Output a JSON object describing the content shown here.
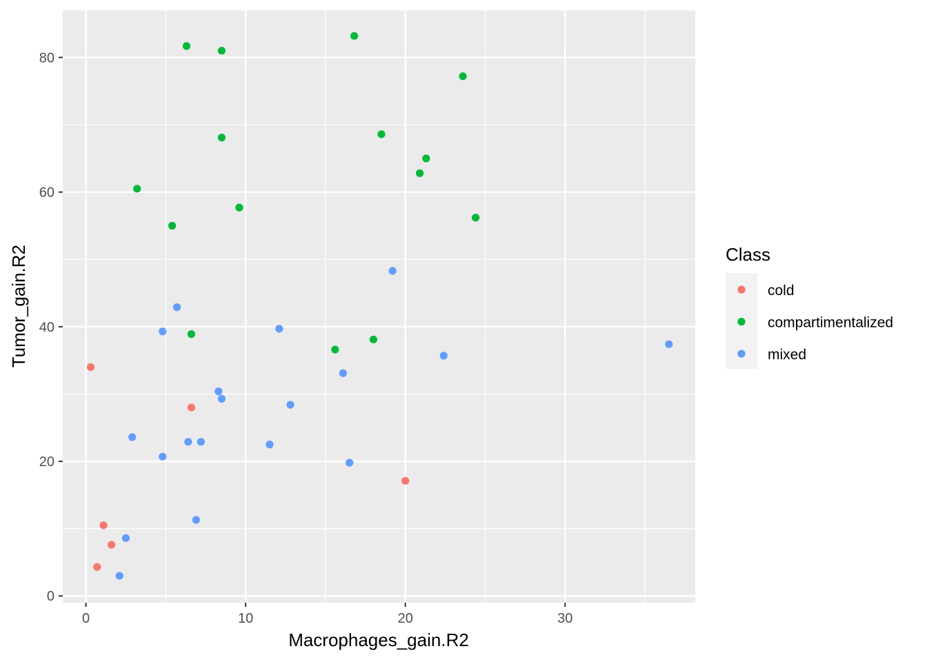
{
  "chart_data": {
    "type": "scatter",
    "xlabel": "Macrophages_gain.R2",
    "ylabel": "Tumor_gain.R2",
    "xlim": [
      -1.45,
      38.15
    ],
    "ylim": [
      -1.0,
      87.0
    ],
    "x_ticks": [
      0,
      10,
      20,
      30
    ],
    "y_ticks": [
      0,
      20,
      40,
      60,
      80
    ],
    "x_minor": [
      5,
      15,
      25,
      35
    ],
    "y_minor": [
      10,
      30,
      50,
      70
    ],
    "grid": true,
    "legend": {
      "title": "Class",
      "position": "right",
      "entries": [
        {
          "label": "cold",
          "color": "#F8766D"
        },
        {
          "label": "compartimentalized",
          "color": "#00BA38"
        },
        {
          "label": "mixed",
          "color": "#619CFF"
        }
      ]
    },
    "series": [
      {
        "name": "cold",
        "color": "#F8766D",
        "points": [
          [
            0.3,
            34.0
          ],
          [
            0.7,
            4.3
          ],
          [
            1.1,
            10.5
          ],
          [
            1.6,
            7.6
          ],
          [
            6.6,
            28.0
          ],
          [
            20.0,
            17.1
          ]
        ]
      },
      {
        "name": "compartimentalized",
        "color": "#00BA38",
        "points": [
          [
            3.2,
            60.5
          ],
          [
            5.4,
            55.0
          ],
          [
            6.3,
            81.7
          ],
          [
            6.6,
            38.9
          ],
          [
            8.5,
            81.0
          ],
          [
            8.5,
            68.1
          ],
          [
            9.6,
            57.7
          ],
          [
            15.6,
            36.6
          ],
          [
            16.8,
            83.2
          ],
          [
            18.0,
            38.1
          ],
          [
            18.5,
            68.6
          ],
          [
            20.9,
            62.8
          ],
          [
            21.3,
            65.0
          ],
          [
            23.6,
            77.2
          ],
          [
            24.4,
            56.2
          ]
        ]
      },
      {
        "name": "mixed",
        "color": "#619CFF",
        "points": [
          [
            2.1,
            3.0
          ],
          [
            2.5,
            8.6
          ],
          [
            2.9,
            23.6
          ],
          [
            4.8,
            39.3
          ],
          [
            4.8,
            20.7
          ],
          [
            5.7,
            42.9
          ],
          [
            6.4,
            22.9
          ],
          [
            6.9,
            11.3
          ],
          [
            7.2,
            22.9
          ],
          [
            8.3,
            30.4
          ],
          [
            8.5,
            29.3
          ],
          [
            11.5,
            22.5
          ],
          [
            12.1,
            39.7
          ],
          [
            12.8,
            28.4
          ],
          [
            16.1,
            33.1
          ],
          [
            16.5,
            19.8
          ],
          [
            19.2,
            48.3
          ],
          [
            22.4,
            35.7
          ],
          [
            36.5,
            37.4
          ]
        ]
      }
    ]
  }
}
